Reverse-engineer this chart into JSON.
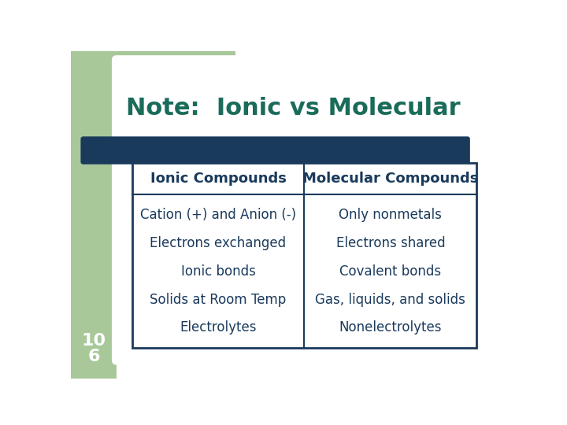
{
  "title": "Note:  Ionic vs Molecular",
  "title_color": "#1a6b5a",
  "title_fontsize": 22,
  "bg_color": "#ffffff",
  "green_rect_color": "#a8c89a",
  "blue_bar_color": "#1a3a5c",
  "table_border_color": "#1a3a5c",
  "header_left": "Ionic Compounds",
  "header_right": "Molecular Compounds",
  "header_color": "#1a3a5c",
  "header_fontsize": 13,
  "body_color": "#1a3a5c",
  "body_fontsize": 12,
  "left_items": [
    "Cation (+) and Anion (-)",
    "Electrons exchanged",
    "Ionic bonds",
    "Solids at Room Temp",
    "Electrolytes"
  ],
  "right_items": [
    "Only nonmetals",
    "Electrons shared",
    "Covalent bonds",
    "Gas, liquids, and solids",
    "Nonelectrolytes"
  ],
  "slide_number_top": "10",
  "slide_number_bot": "6"
}
